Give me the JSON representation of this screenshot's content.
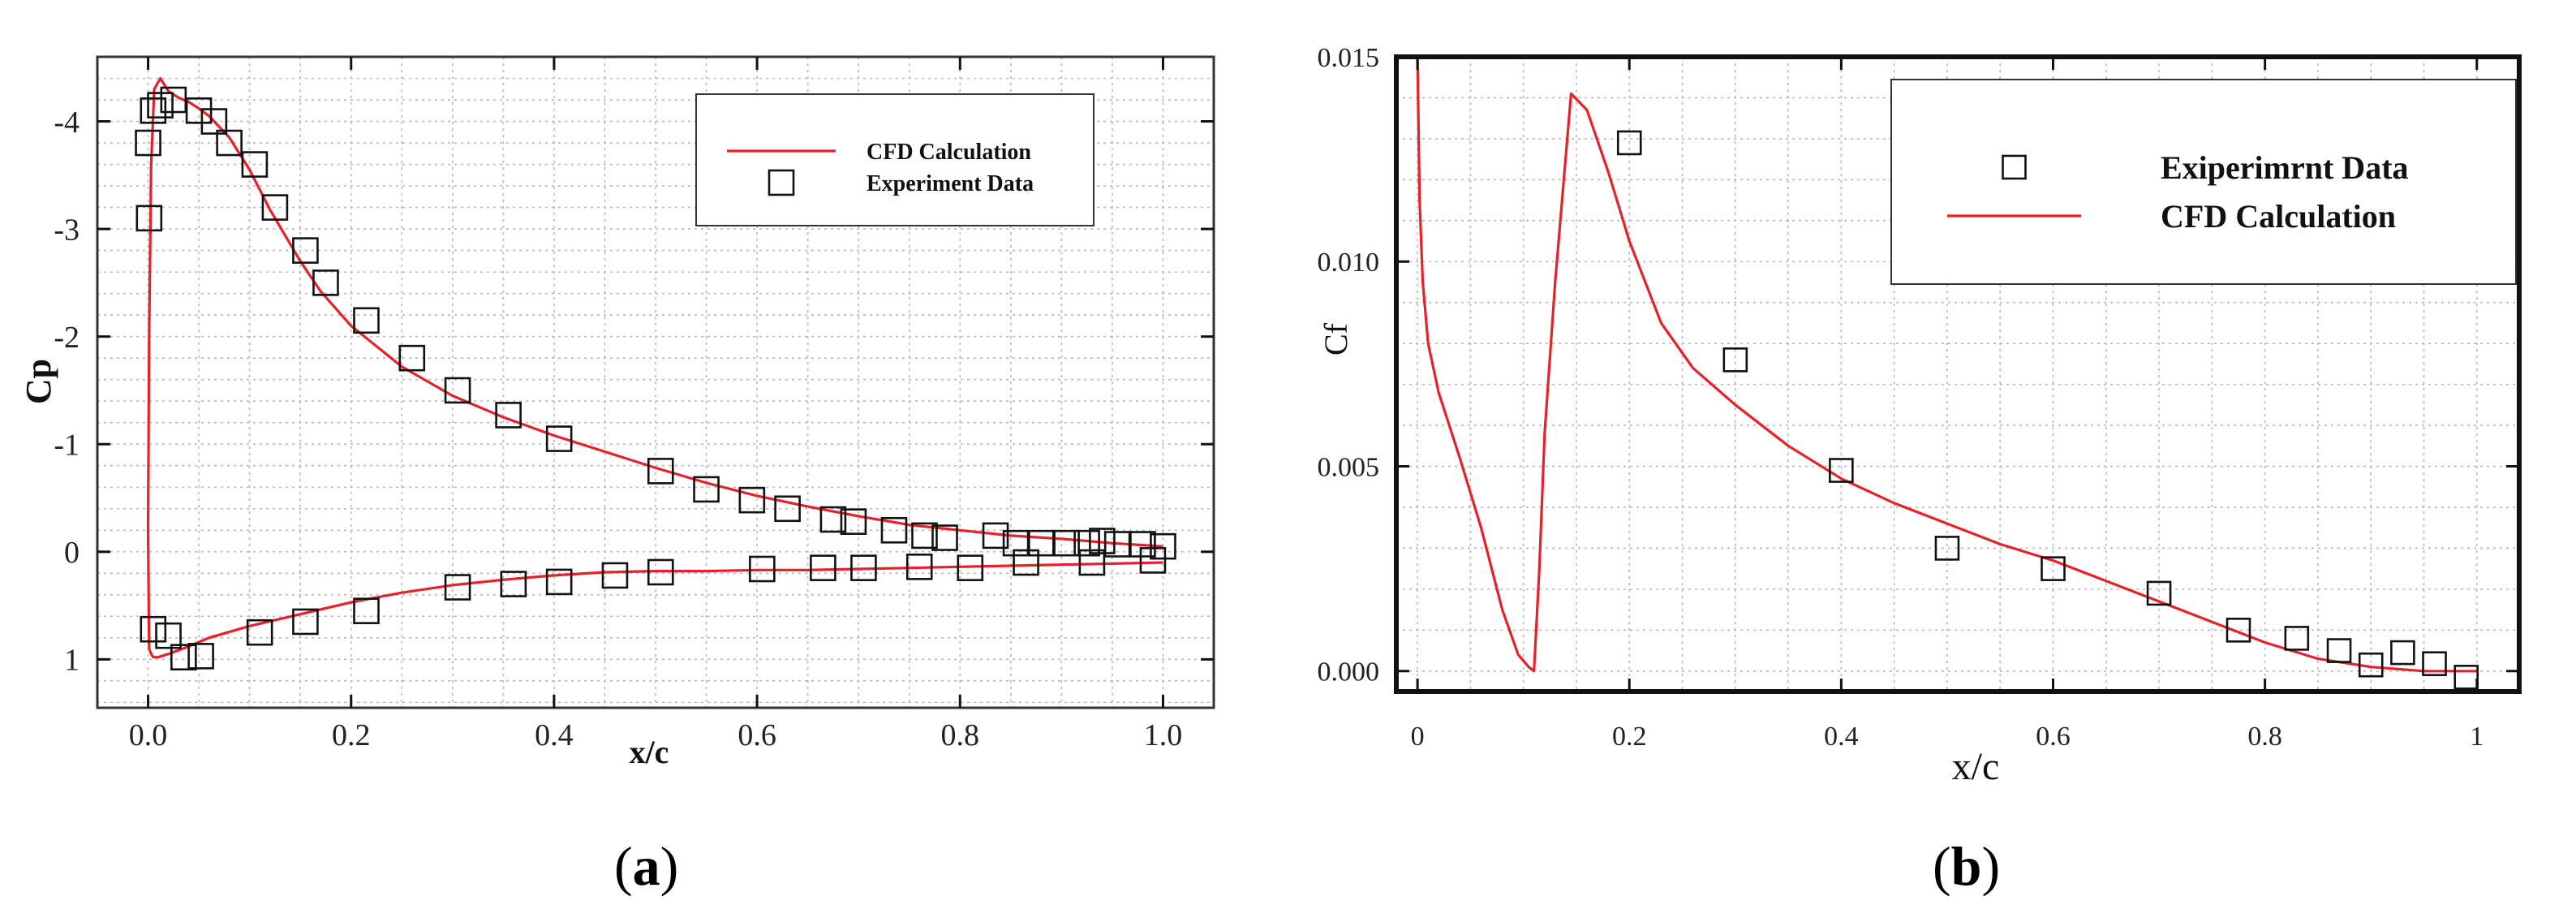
{
  "chart_data": [
    {
      "type": "line+scatter",
      "panel_label": "(a)",
      "panel_label_parts": [
        "(",
        "a",
        ")"
      ],
      "xlabel": "x/c",
      "ylabel": "Cp",
      "xlim": [
        -0.05,
        1.05
      ],
      "ylim": [
        1.45,
        -4.6
      ],
      "y_reversed": true,
      "grid": true,
      "xticks": [
        0.0,
        0.2,
        0.4,
        0.6,
        0.8,
        1.0
      ],
      "xtick_labels": [
        "0.0",
        "0.2",
        "0.4",
        "0.6",
        "0.8",
        "1.0"
      ],
      "yticks": [
        -4,
        -3,
        -2,
        -1,
        0,
        1
      ],
      "ytick_labels": [
        "-4",
        "-3",
        "-2",
        "-1",
        "0",
        "1"
      ],
      "legend_position": "top-right",
      "legend": [
        {
          "label": "CFD Calculation",
          "marker": "line",
          "color": "#e8202a"
        },
        {
          "label": "Experiment Data",
          "marker": "square",
          "color": "#111111"
        }
      ],
      "series": [
        {
          "name": "CFD Calculation",
          "kind": "line",
          "color": "#e8202a",
          "x": [
            1.0,
            0.95,
            0.9,
            0.85,
            0.8,
            0.75,
            0.7,
            0.65,
            0.6,
            0.55,
            0.5,
            0.45,
            0.4,
            0.35,
            0.3,
            0.25,
            0.2,
            0.17,
            0.15,
            0.12,
            0.1,
            0.08,
            0.06,
            0.05,
            0.04,
            0.03,
            0.02,
            0.012,
            0.006,
            0.003,
            0.001,
            0.0,
            0.001,
            0.003,
            0.005,
            0.01,
            0.02,
            0.04,
            0.06,
            0.1,
            0.15,
            0.2,
            0.25,
            0.3,
            0.35,
            0.4,
            0.45,
            0.5,
            0.55,
            0.6,
            0.65,
            0.7,
            0.75,
            0.8,
            0.85,
            0.9,
            0.95,
            1.0
          ],
          "y": [
            -0.05,
            -0.08,
            -0.12,
            -0.15,
            -0.2,
            -0.25,
            -0.33,
            -0.42,
            -0.52,
            -0.64,
            -0.78,
            -0.93,
            -1.08,
            -1.25,
            -1.45,
            -1.72,
            -2.1,
            -2.42,
            -2.7,
            -3.18,
            -3.55,
            -3.85,
            -4.05,
            -4.12,
            -4.18,
            -4.22,
            -4.28,
            -4.4,
            -4.3,
            -3.6,
            -2.0,
            -0.2,
            0.9,
            0.95,
            0.98,
            0.98,
            0.95,
            0.88,
            0.8,
            0.69,
            0.58,
            0.47,
            0.38,
            0.31,
            0.26,
            0.22,
            0.19,
            0.18,
            0.18,
            0.17,
            0.17,
            0.16,
            0.15,
            0.14,
            0.13,
            0.12,
            0.11,
            0.1
          ]
        },
        {
          "name": "Experiment Data",
          "kind": "scatter",
          "marker": "square",
          "points": [
            [
              0.0,
              -3.8
            ],
            [
              0.001,
              -3.1
            ],
            [
              0.005,
              -4.1
            ],
            [
              0.012,
              -4.15
            ],
            [
              0.025,
              -4.2
            ],
            [
              0.05,
              -4.1
            ],
            [
              0.065,
              -4.0
            ],
            [
              0.08,
              -3.8
            ],
            [
              0.105,
              -3.6
            ],
            [
              0.125,
              -3.2
            ],
            [
              0.155,
              -2.8
            ],
            [
              0.175,
              -2.5
            ],
            [
              0.215,
              -2.15
            ],
            [
              0.26,
              -1.8
            ],
            [
              0.305,
              -1.5
            ],
            [
              0.355,
              -1.27
            ],
            [
              0.405,
              -1.05
            ],
            [
              0.505,
              -0.75
            ],
            [
              0.55,
              -0.58
            ],
            [
              0.595,
              -0.48
            ],
            [
              0.63,
              -0.4
            ],
            [
              0.675,
              -0.3
            ],
            [
              0.695,
              -0.28
            ],
            [
              0.735,
              -0.2
            ],
            [
              0.765,
              -0.15
            ],
            [
              0.785,
              -0.13
            ],
            [
              0.835,
              -0.15
            ],
            [
              0.855,
              -0.08
            ],
            [
              0.88,
              -0.08
            ],
            [
              0.905,
              -0.08
            ],
            [
              0.925,
              -0.08
            ],
            [
              0.94,
              -0.1
            ],
            [
              0.955,
              -0.07
            ],
            [
              0.98,
              -0.07
            ],
            [
              1.0,
              -0.05
            ],
            [
              0.005,
              0.72
            ],
            [
              0.02,
              0.78
            ],
            [
              0.035,
              0.98
            ],
            [
              0.052,
              0.97
            ],
            [
              0.11,
              0.75
            ],
            [
              0.155,
              0.65
            ],
            [
              0.215,
              0.55
            ],
            [
              0.305,
              0.33
            ],
            [
              0.36,
              0.3
            ],
            [
              0.405,
              0.28
            ],
            [
              0.46,
              0.22
            ],
            [
              0.505,
              0.19
            ],
            [
              0.605,
              0.16
            ],
            [
              0.665,
              0.15
            ],
            [
              0.705,
              0.15
            ],
            [
              0.76,
              0.14
            ],
            [
              0.81,
              0.15
            ],
            [
              0.865,
              0.1
            ],
            [
              0.93,
              0.1
            ],
            [
              0.99,
              0.08
            ]
          ]
        }
      ]
    },
    {
      "type": "line+scatter",
      "panel_label": "(b)",
      "panel_label_parts": [
        "(",
        "b",
        ")"
      ],
      "xlabel": "x/c",
      "ylabel": "Cf",
      "xlim": [
        -0.02,
        1.04
      ],
      "ylim": [
        -0.0005,
        0.015
      ],
      "y_reversed": false,
      "grid": true,
      "xticks": [
        0,
        0.2,
        0.4,
        0.6,
        0.8,
        1
      ],
      "xtick_labels": [
        "0",
        "0.2",
        "0.4",
        "0.6",
        "0.8",
        "1"
      ],
      "yticks": [
        0.0,
        0.005,
        0.01,
        0.015
      ],
      "ytick_labels": [
        "0.000",
        "0.005",
        "0.010",
        "0.015"
      ],
      "legend_position": "top-right",
      "legend": [
        {
          "label": "Exiperimrnt Data",
          "marker": "square",
          "color": "#111111"
        },
        {
          "label": "CFD  Calculation",
          "marker": "line",
          "color": "#e8202a"
        }
      ],
      "series": [
        {
          "name": "CFD  Calculation",
          "kind": "line",
          "color": "#e8202a",
          "x": [
            0.0,
            0.002,
            0.005,
            0.01,
            0.02,
            0.04,
            0.06,
            0.08,
            0.095,
            0.105,
            0.11,
            0.115,
            0.12,
            0.13,
            0.145,
            0.16,
            0.18,
            0.2,
            0.23,
            0.26,
            0.3,
            0.35,
            0.4,
            0.45,
            0.5,
            0.55,
            0.6,
            0.65,
            0.7,
            0.75,
            0.8,
            0.85,
            0.9,
            0.95,
            1.0
          ],
          "y": [
            0.015,
            0.0115,
            0.0095,
            0.008,
            0.0068,
            0.0052,
            0.0035,
            0.0015,
            0.0004,
            0.0001,
            0.0,
            0.0025,
            0.0058,
            0.0095,
            0.0141,
            0.0137,
            0.0122,
            0.0105,
            0.0085,
            0.0074,
            0.0065,
            0.0055,
            0.0047,
            0.0041,
            0.0036,
            0.0031,
            0.0027,
            0.0022,
            0.0017,
            0.0012,
            0.0007,
            0.0003,
            0.0001,
            0.0,
            0.0
          ]
        },
        {
          "name": "Exiperimrnt Data",
          "kind": "scatter",
          "marker": "square",
          "points": [
            [
              0.2,
              0.0129
            ],
            [
              0.3,
              0.0076
            ],
            [
              0.4,
              0.0049
            ],
            [
              0.5,
              0.003
            ],
            [
              0.6,
              0.0025
            ],
            [
              0.7,
              0.0019
            ],
            [
              0.775,
              0.001
            ],
            [
              0.83,
              0.0008
            ],
            [
              0.87,
              0.0005
            ],
            [
              0.9,
              0.00015
            ],
            [
              0.93,
              0.00045
            ],
            [
              0.96,
              0.00018
            ],
            [
              0.99,
              -0.00015
            ]
          ]
        }
      ]
    }
  ]
}
